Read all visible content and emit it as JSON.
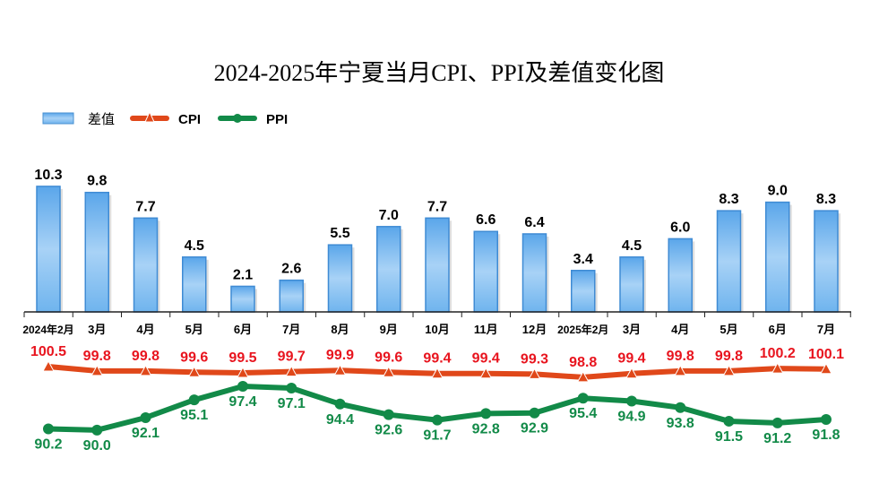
{
  "chart_data": {
    "type": "bar+line",
    "title": "2024-2025年宁夏当月CPI、PPI及差值变化图",
    "legend_position": "top-left",
    "categories": [
      "2024年2月",
      "3月",
      "4月",
      "5月",
      "6月",
      "7月",
      "8月",
      "9月",
      "10月",
      "11月",
      "12月",
      "2025年2月",
      "3月",
      "4月",
      "5月",
      "6月",
      "7月"
    ],
    "series": [
      {
        "name": "差值",
        "type": "bar",
        "color": "#5aaae8",
        "values": [
          10.3,
          9.8,
          7.7,
          4.5,
          2.1,
          2.6,
          5.5,
          7.0,
          7.7,
          6.6,
          6.4,
          3.4,
          4.5,
          6.0,
          8.3,
          9.0,
          8.3
        ]
      },
      {
        "name": "CPI",
        "type": "line",
        "marker": "triangle",
        "color": "#e0481a",
        "label_color": "#e8141e",
        "values": [
          100.5,
          99.8,
          99.8,
          99.6,
          99.5,
          99.7,
          99.9,
          99.6,
          99.4,
          99.4,
          99.3,
          98.8,
          99.4,
          99.8,
          99.8,
          100.2,
          100.1
        ]
      },
      {
        "name": "PPI",
        "type": "line",
        "marker": "circle",
        "color": "#128a48",
        "label_color": "#128a48",
        "values": [
          90.2,
          90.0,
          92.1,
          95.1,
          97.4,
          97.1,
          94.4,
          92.6,
          91.7,
          92.8,
          92.9,
          95.4,
          94.9,
          93.8,
          91.5,
          91.2,
          91.8
        ]
      }
    ],
    "grid": false
  }
}
